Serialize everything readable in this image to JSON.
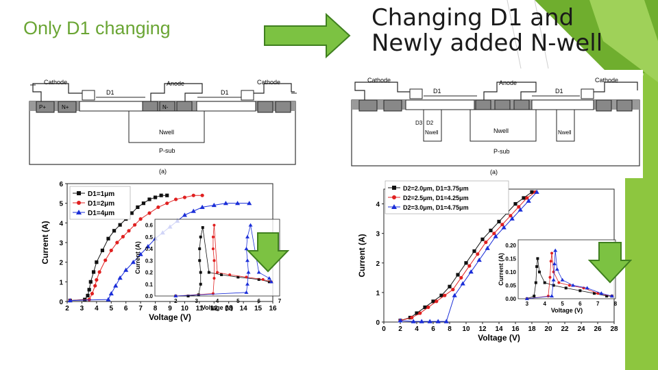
{
  "slide": {
    "title_left": "Only D1 changing",
    "title_right_line1": "Changing D1 and",
    "title_right_line2": "Newly added N-well",
    "colors": {
      "accent_green": "#8dc63f",
      "title_green": "#6aa534",
      "arrow_green": "#7cc242",
      "arrow_border": "#3f7f1f"
    }
  },
  "left_schematic": {
    "labels": {
      "cathode_left": "Cathode",
      "anode": "Anode",
      "cathode_right": "Cathode",
      "d1_left": "D1",
      "d1_right": "D1",
      "p_plus": "P+",
      "n_plus": "N+",
      "n_minus": "N-",
      "nwell": "Nwell",
      "psub": "P-sub",
      "caption": "(a)"
    }
  },
  "right_schematic": {
    "labels": {
      "cathode_left": "Cathode",
      "anode": "Anode",
      "cathode_right": "Cathode",
      "d1_left": "D1",
      "d1_right": "D1",
      "d2": "D2",
      "d3": "D3",
      "nwell": "Nwell",
      "psub": "P-sub",
      "caption": "(a)"
    }
  },
  "chart_data": [
    {
      "type": "scatter",
      "title": "",
      "xlabel": "Voltage (V)",
      "ylabel": "Current (A)",
      "xlim": [
        2,
        16
      ],
      "ylim": [
        0,
        6
      ],
      "xticks": [
        "2",
        "3",
        "4",
        "5",
        "6",
        "7",
        "8",
        "9",
        "10",
        "11",
        "12",
        "13",
        "14",
        "15",
        "16"
      ],
      "yticks": [
        "0",
        "1",
        "2",
        "3",
        "4",
        "5",
        "6"
      ],
      "series": [
        {
          "name": "D1=1μm",
          "color": "#111111",
          "marker": "square",
          "x": [
            2.2,
            3.2,
            3.4,
            3.5,
            3.6,
            3.8,
            4.0,
            4.4,
            4.8,
            5.2,
            5.6,
            6.0,
            6.4,
            6.8,
            7.2,
            7.6,
            8.0,
            8.4,
            8.8
          ],
          "y": [
            0.05,
            0.1,
            0.3,
            0.6,
            1.0,
            1.5,
            2.0,
            2.6,
            3.2,
            3.6,
            3.9,
            4.2,
            4.5,
            4.8,
            5.0,
            5.2,
            5.3,
            5.4,
            5.4
          ]
        },
        {
          "name": "D1=2μm",
          "color": "#e02020",
          "marker": "circle",
          "x": [
            2.2,
            3.5,
            3.7,
            3.9,
            4.0,
            4.2,
            4.6,
            5.0,
            5.4,
            5.8,
            6.2,
            6.6,
            7.0,
            7.6,
            8.2,
            8.8,
            9.4,
            10.0,
            10.6,
            11.2
          ],
          "y": [
            0.05,
            0.1,
            0.4,
            0.8,
            1.1,
            1.5,
            2.1,
            2.6,
            3.0,
            3.3,
            3.6,
            3.9,
            4.2,
            4.5,
            4.8,
            5.0,
            5.2,
            5.3,
            5.4,
            5.4
          ]
        },
        {
          "name": "D1=4μm",
          "color": "#1a2ed8",
          "marker": "triangle",
          "x": [
            2.2,
            4.8,
            5.0,
            5.3,
            5.6,
            6.0,
            6.5,
            7.0,
            7.5,
            8.0,
            8.5,
            9.0,
            9.5,
            10.0,
            10.6,
            11.2,
            12.0,
            12.8,
            13.6,
            14.4
          ],
          "y": [
            0.05,
            0.1,
            0.4,
            0.8,
            1.2,
            1.6,
            2.0,
            2.4,
            2.8,
            3.2,
            3.5,
            3.8,
            4.1,
            4.4,
            4.6,
            4.8,
            4.9,
            5.0,
            5.0,
            5.0
          ]
        }
      ],
      "legend": [
        "D1=1μm",
        "D1=2μm",
        "D1=4μm"
      ],
      "legend_position": "top-left",
      "inset": {
        "xlabel": "Voltage (V)",
        "ylabel": "Current (A)",
        "xlim": [
          1,
          7
        ],
        "ylim": [
          0,
          0.65
        ],
        "xticks": [
          "2",
          "3",
          "4",
          "5",
          "6",
          "7"
        ],
        "yticks": [
          "0.0",
          "0.1",
          "0.2",
          "0.3",
          "0.4",
          "0.5",
          "0.6"
        ],
        "series": [
          {
            "name": "D1=1μm",
            "x": [
              2.0,
              2.6,
              3.1,
              3.2,
              3.2,
              3.15,
              3.15,
              3.2,
              3.3,
              3.6,
              4.2,
              5.0,
              6.0,
              6.5
            ],
            "y": [
              0.0,
              0.0,
              0.01,
              0.1,
              0.2,
              0.3,
              0.4,
              0.5,
              0.58,
              0.2,
              0.18,
              0.16,
              0.14,
              0.12
            ]
          },
          {
            "name": "D1=2μm",
            "x": [
              2.0,
              3.8,
              3.85,
              3.85,
              3.8,
              3.8,
              3.85,
              4.0,
              4.6,
              5.4,
              6.2,
              6.6
            ],
            "y": [
              0.0,
              0.02,
              0.15,
              0.3,
              0.4,
              0.5,
              0.6,
              0.2,
              0.18,
              0.16,
              0.14,
              0.12
            ]
          },
          {
            "name": "D1=4μm",
            "x": [
              2.0,
              5.4,
              5.45,
              5.5,
              5.45,
              5.4,
              5.45,
              5.6,
              6.0,
              6.5,
              6.6
            ],
            "y": [
              0.0,
              0.03,
              0.1,
              0.2,
              0.3,
              0.4,
              0.5,
              0.6,
              0.2,
              0.15,
              0.12
            ]
          }
        ]
      }
    },
    {
      "type": "scatter",
      "title": "",
      "xlabel": "Voltage (V)",
      "ylabel": "Current (A)",
      "xlim": [
        0,
        28
      ],
      "ylim": [
        0,
        4.5
      ],
      "xticks": [
        "0",
        "2",
        "4",
        "6",
        "8",
        "10",
        "12",
        "14",
        "16",
        "18",
        "20",
        "22",
        "24",
        "26",
        "28"
      ],
      "yticks": [
        "0",
        "1",
        "2",
        "3",
        "4"
      ],
      "series": [
        {
          "name": "D2=2.0μm, D1=3.75μm",
          "color": "#111111",
          "marker": "square",
          "x": [
            2.0,
            3.2,
            4.0,
            5.0,
            6.0,
            7.0,
            8.0,
            9.0,
            10.0,
            11.0,
            12.0,
            13.0,
            14.0,
            15.0,
            16.0,
            17.0,
            18.0
          ],
          "y": [
            0.05,
            0.15,
            0.3,
            0.5,
            0.7,
            0.9,
            1.2,
            1.6,
            2.0,
            2.4,
            2.8,
            3.1,
            3.4,
            3.7,
            4.0,
            4.2,
            4.4
          ]
        },
        {
          "name": "D2=2.5μm, D1=4.25μm",
          "color": "#e02020",
          "marker": "circle",
          "x": [
            2.0,
            3.4,
            4.4,
            5.4,
            6.4,
            7.4,
            8.4,
            9.4,
            10.4,
            11.4,
            12.4,
            13.4,
            14.4,
            15.4,
            16.4,
            17.4,
            18.4
          ],
          "y": [
            0.05,
            0.15,
            0.3,
            0.5,
            0.7,
            0.9,
            1.1,
            1.5,
            1.9,
            2.3,
            2.7,
            3.0,
            3.3,
            3.6,
            3.9,
            4.2,
            4.4
          ]
        },
        {
          "name": "D2=3.0μm, D1=4.75μm",
          "color": "#1a2ed8",
          "marker": "triangle",
          "x": [
            2.0,
            3.6,
            4.6,
            5.6,
            6.6,
            7.6,
            8.6,
            9.6,
            10.6,
            11.6,
            12.6,
            13.6,
            14.6,
            15.6,
            16.6,
            17.6,
            18.6
          ],
          "y": [
            0.05,
            0.02,
            0.02,
            0.02,
            0.02,
            0.02,
            0.9,
            1.3,
            1.7,
            2.1,
            2.5,
            2.9,
            3.2,
            3.5,
            3.8,
            4.1,
            4.4
          ]
        }
      ],
      "legend": [
        "D2=2.0μm, D1=3.75μm",
        "D2=2.5μm, D1=4.25μm",
        "D2=3.0μm, D1=4.75μm"
      ],
      "legend_position": "top-left",
      "inset": {
        "xlabel": "Voltage (V)",
        "ylabel": "Current (A)",
        "xlim": [
          2.5,
          8
        ],
        "ylim": [
          0,
          0.22
        ],
        "xticks": [
          "3",
          "4",
          "5",
          "6",
          "7",
          "8"
        ],
        "yticks": [
          "0.00",
          "0.05",
          "0.10",
          "0.15",
          "0.20"
        ],
        "series": [
          {
            "name": "D2=2.0μm",
            "x": [
              3.0,
              3.4,
              3.5,
              3.55,
              3.6,
              3.7,
              4.0,
              4.5,
              5.2,
              6.0,
              6.8,
              7.5,
              7.8
            ],
            "y": [
              0.0,
              0.01,
              0.06,
              0.12,
              0.15,
              0.1,
              0.06,
              0.05,
              0.04,
              0.03,
              0.02,
              0.01,
              0.01
            ]
          },
          {
            "name": "D2=2.5μm",
            "x": [
              3.0,
              4.2,
              4.3,
              4.35,
              4.4,
              4.5,
              4.8,
              5.4,
              6.2,
              7.0,
              7.8
            ],
            "y": [
              0.0,
              0.01,
              0.08,
              0.14,
              0.17,
              0.1,
              0.06,
              0.05,
              0.04,
              0.02,
              0.01
            ]
          },
          {
            "name": "D2=3.0μm",
            "x": [
              3.0,
              4.4,
              4.5,
              4.55,
              4.6,
              4.7,
              5.0,
              5.6,
              6.4,
              7.2,
              7.8
            ],
            "y": [
              0.0,
              0.01,
              0.07,
              0.13,
              0.18,
              0.11,
              0.07,
              0.05,
              0.04,
              0.02,
              0.01
            ]
          }
        ]
      }
    }
  ]
}
